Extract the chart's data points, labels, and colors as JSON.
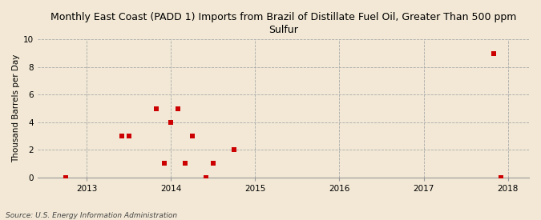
{
  "title": "Monthly East Coast (PADD 1) Imports from Brazil of Distillate Fuel Oil, Greater Than 500 ppm\nSulfur",
  "ylabel": "Thousand Barrels per Day",
  "source": "Source: U.S. Energy Information Administration",
  "background_color": "#f2e8d5",
  "scatter_color": "#cc0000",
  "ylim": [
    0,
    10
  ],
  "yticks": [
    0,
    2,
    4,
    6,
    8,
    10
  ],
  "xlim": [
    2012.42,
    2018.25
  ],
  "xticks": [
    2013,
    2014,
    2015,
    2016,
    2017,
    2018
  ],
  "data_x": [
    2012.75,
    2013.42,
    2013.5,
    2013.83,
    2013.92,
    2014.0,
    2014.08,
    2014.17,
    2014.25,
    2014.42,
    2014.5,
    2014.75,
    2017.83,
    2017.92
  ],
  "data_y": [
    0,
    3,
    3,
    5,
    1,
    4,
    5,
    1,
    3,
    0,
    1,
    2,
    9,
    0
  ]
}
